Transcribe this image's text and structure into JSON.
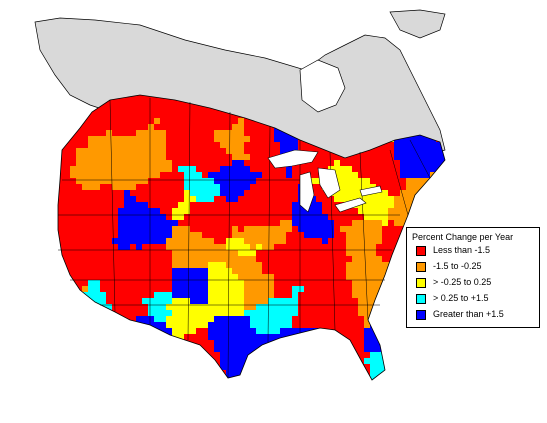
{
  "legend": {
    "title": "Percent Change per Year",
    "items": [
      {
        "label": "Less than -1.5",
        "color": "#ff0000",
        "icon": "red-swatch"
      },
      {
        "label": "-1.5 to -0.25",
        "color": "#ff9900",
        "icon": "orange-swatch"
      },
      {
        "label": "> -0.25 to 0.25",
        "color": "#ffff00",
        "icon": "yellow-swatch"
      },
      {
        "label": "> 0.25 to +1.5",
        "color": "#00ffff",
        "icon": "cyan-swatch"
      },
      {
        "label": "Greater than +1.5",
        "color": "#0000ff",
        "icon": "blue-swatch"
      }
    ]
  },
  "colors": {
    "no_data_land": "#d9d9d9",
    "outline": "#000000",
    "background": "#ffffff"
  }
}
